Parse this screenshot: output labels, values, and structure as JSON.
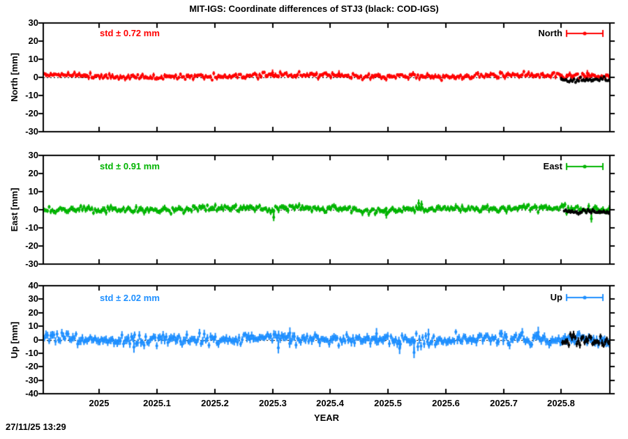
{
  "header": {
    "title": "MIT-IGS: Coordinate differences of STJ3 (black: COD-IGS)"
  },
  "footer": {
    "timestamp": "27/11/25 13:29"
  },
  "chart_data": {
    "type": "scatter",
    "title": "MIT-IGS: Coordinate differences of STJ3 (black: COD-IGS)",
    "xlabel": "YEAR",
    "xlim": [
      2024.903,
      2025.884
    ],
    "x_ticks": [
      {
        "value": 2025.0,
        "label": "2025"
      },
      {
        "value": 2025.1,
        "label": "2025.1"
      },
      {
        "value": 2025.2,
        "label": "2025.2"
      },
      {
        "value": 2025.3,
        "label": "2025.3"
      },
      {
        "value": 2025.4,
        "label": "2025.4"
      },
      {
        "value": 2025.5,
        "label": "2025.5"
      },
      {
        "value": 2025.6,
        "label": "2025.6"
      },
      {
        "value": 2025.7,
        "label": "2025.7"
      },
      {
        "value": 2025.8,
        "label": "2025.8"
      }
    ],
    "grid": "dashed zero line only",
    "legend_position": "inside top-right",
    "cod_color": "#000000",
    "cod_note": "black: COD-IGS overlay, visible only near end of series",
    "panels": [
      {
        "id": "north",
        "ylabel": "North [mm]",
        "ylim": [
          -30,
          30
        ],
        "ytick_step": 10,
        "y_tick_labels": [
          "30",
          "20",
          "10",
          "0",
          "-10",
          "-20",
          "-30"
        ],
        "std_text": "std ± 0.72 mm",
        "std_mm": 0.72,
        "legend": "North",
        "color": "#ff0000",
        "series_model": {
          "x_start": 2024.905,
          "x_end": 2025.883,
          "points_per_year": 365,
          "sigma_mm": 0.72,
          "errorbar_mm": 1.1,
          "wander_mm": 0.4,
          "offset_mm": 0.8,
          "seed": 11
        },
        "cod_model": {
          "x_start": 2025.8,
          "x_end": 2025.881,
          "points_per_year": 365,
          "sigma_mm": 0.6,
          "errorbar_mm": 0.9,
          "wander_mm": 0.3,
          "offset_mm": -1.0,
          "seed": 41
        },
        "outliers": [
          [
            2025.3,
            2.6
          ],
          [
            2025.415,
            2.2
          ],
          [
            2025.845,
            2.3
          ]
        ]
      },
      {
        "id": "east",
        "ylabel": "East [mm]",
        "ylim": [
          -30,
          30
        ],
        "ytick_step": 10,
        "y_tick_labels": [
          "30",
          "20",
          "10",
          "0",
          "-10",
          "-20",
          "-30"
        ],
        "std_text": "std ± 0.91 mm",
        "std_mm": 0.91,
        "legend": "East",
        "color": "#00b400",
        "series_model": {
          "x_start": 2024.905,
          "x_end": 2025.883,
          "points_per_year": 365,
          "sigma_mm": 0.91,
          "errorbar_mm": 1.3,
          "wander_mm": 0.5,
          "offset_mm": 0.4,
          "seed": 22
        },
        "cod_model": {
          "x_start": 2025.805,
          "x_end": 2025.881,
          "points_per_year": 365,
          "sigma_mm": 0.7,
          "errorbar_mm": 1.0,
          "wander_mm": 0.3,
          "offset_mm": -1.3,
          "seed": 52
        },
        "outliers": [
          [
            2025.302,
            -4.2
          ],
          [
            2025.497,
            -2.8
          ],
          [
            2025.553,
            3.6
          ],
          [
            2025.558,
            3.0
          ],
          [
            2025.852,
            -5.0
          ]
        ]
      },
      {
        "id": "up",
        "ylabel": "Up [mm]",
        "ylim": [
          -40,
          40
        ],
        "ytick_step": 10,
        "y_tick_labels": [
          "40",
          "30",
          "20",
          "10",
          "0",
          "-10",
          "-20",
          "-30",
          "-40"
        ],
        "std_text": "std ± 2.02 mm",
        "std_mm": 2.02,
        "legend": "Up",
        "color": "#1e8fff",
        "series_model": {
          "x_start": 2024.905,
          "x_end": 2025.883,
          "points_per_year": 365,
          "sigma_mm": 2.02,
          "errorbar_mm": 2.6,
          "wander_mm": 0.8,
          "offset_mm": 0.3,
          "seed": 33
        },
        "cod_model": {
          "x_start": 2025.802,
          "x_end": 2025.881,
          "points_per_year": 365,
          "sigma_mm": 1.9,
          "errorbar_mm": 2.2,
          "wander_mm": 0.5,
          "offset_mm": -1.2,
          "seed": 63
        },
        "outliers": [
          [
            2025.06,
            -5.5
          ],
          [
            2025.31,
            -6.0
          ],
          [
            2025.33,
            5.0
          ],
          [
            2025.48,
            4.5
          ],
          [
            2025.52,
            -6.5
          ],
          [
            2025.545,
            -9.5
          ],
          [
            2025.57,
            4.0
          ],
          [
            2025.76,
            5.5
          ]
        ]
      }
    ]
  }
}
